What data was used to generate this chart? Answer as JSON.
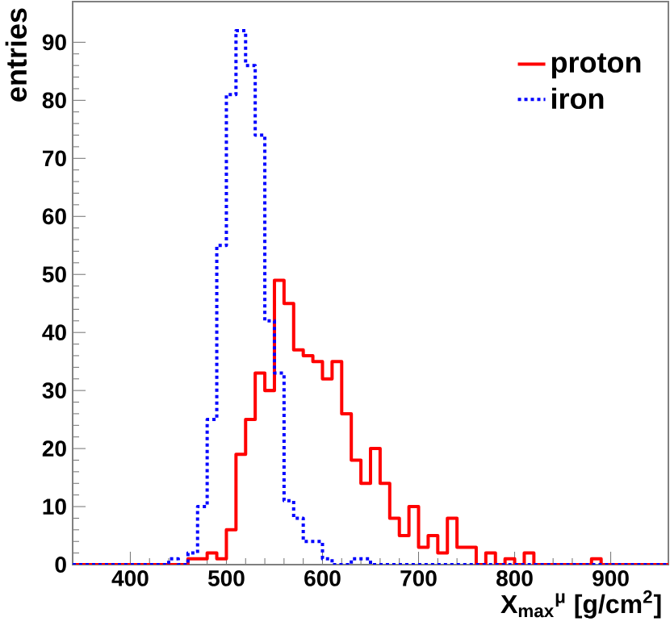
{
  "chart_data": {
    "type": "histogram",
    "xlabel": "X$_{max}$$^{μ}$ [g/cm$^{2}$]",
    "ylabel": "entries",
    "bins": [
      340,
      350,
      360,
      370,
      380,
      390,
      400,
      410,
      420,
      430,
      440,
      450,
      460,
      470,
      480,
      490,
      500,
      510,
      520,
      530,
      540,
      550,
      560,
      570,
      580,
      590,
      600,
      610,
      620,
      630,
      640,
      650,
      660,
      670,
      680,
      690,
      700,
      710,
      720,
      730,
      740,
      750,
      760,
      770,
      780,
      790,
      800,
      810,
      820,
      830,
      840,
      850,
      860,
      870,
      880,
      890,
      900,
      910,
      920,
      930,
      940,
      950,
      960
    ],
    "series": [
      {
        "name": "proton",
        "color": "#ff0000",
        "line_style": "solid",
        "values": [
          0,
          0,
          0,
          0,
          0,
          0,
          0,
          0,
          0,
          0,
          0,
          0,
          1,
          1,
          2,
          1,
          6,
          19,
          25,
          33,
          30,
          49,
          45,
          37,
          36,
          35,
          32,
          35,
          26,
          18,
          14,
          20,
          14,
          8,
          5,
          10,
          3,
          5,
          2,
          8,
          3,
          3,
          0,
          2,
          0,
          1,
          0,
          2,
          0,
          0,
          0,
          0,
          0,
          0,
          1,
          0,
          0,
          0,
          0,
          0,
          0,
          0
        ]
      },
      {
        "name": "iron",
        "color": "#0000ff",
        "line_style": "dotted",
        "values": [
          0,
          0,
          0,
          0,
          0,
          0,
          0,
          0,
          0,
          0,
          1,
          0,
          2,
          10,
          25,
          55,
          81,
          92,
          86,
          74,
          42,
          33,
          11,
          8,
          4,
          4,
          1,
          0,
          0,
          1,
          1,
          0,
          0,
          0,
          0,
          0,
          0,
          0,
          0,
          0,
          0,
          0,
          0,
          0,
          0,
          0,
          0,
          0,
          0,
          0,
          0,
          0,
          0,
          0,
          0,
          0,
          0,
          0,
          0,
          0,
          0,
          0
        ]
      }
    ],
    "xlim": [
      340,
      960
    ],
    "ylim": [
      0,
      97
    ],
    "xticks": [
      400,
      500,
      600,
      700,
      800,
      900
    ],
    "yticks": [
      0,
      10,
      20,
      30,
      40,
      50,
      60,
      70,
      80,
      90
    ],
    "grid": false,
    "legend": "top right"
  }
}
